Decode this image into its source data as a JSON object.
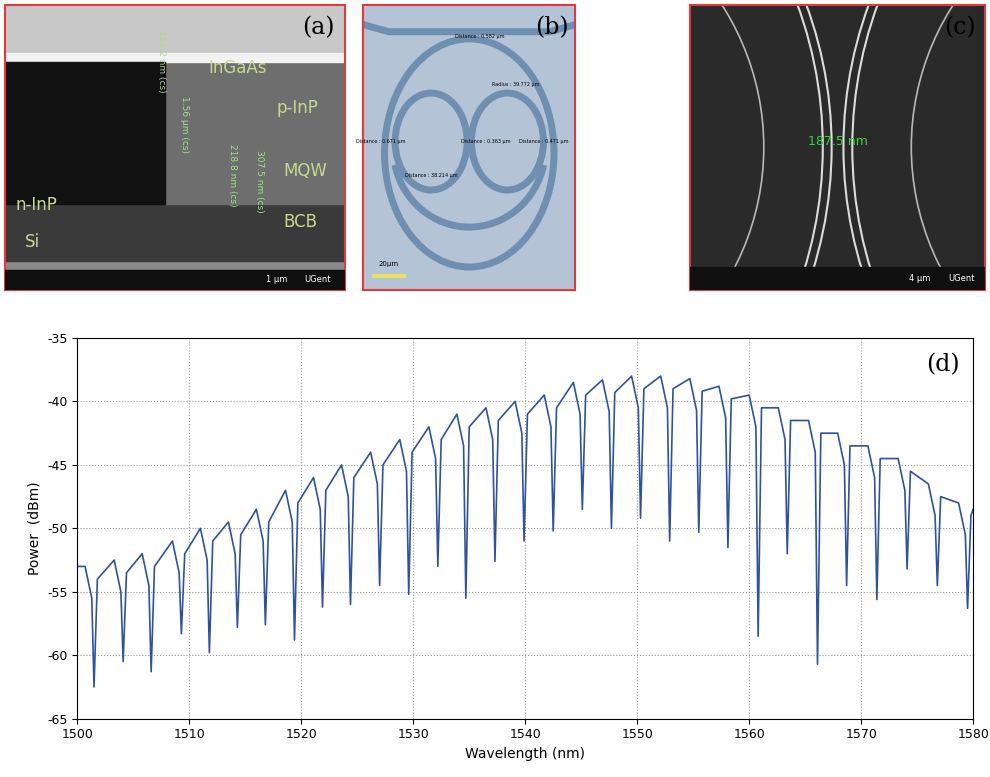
{
  "panels": [
    {
      "label": "(a)",
      "layers": [
        "InGaAs",
        "p-InP",
        "MQW",
        "BCB",
        "n-InP",
        "Si"
      ],
      "measurements": [
        "161.2 nm (cs)",
        "1.56 µm (cs)",
        "218.8 nm (cs)",
        "307.5 nm (cs)"
      ],
      "scale_bar": "1 µm",
      "footer": "UGent"
    },
    {
      "label": "(b)",
      "measurements": [
        "Distance : 0.582 µm",
        "Distance : 0.671 µm",
        "Distance : 38.214 µm",
        "Distance : 0.363 µm",
        "Distance : 0.471 µm",
        "Radius : 39.772 µm"
      ],
      "scale_bar": "20µm"
    },
    {
      "label": "(c)",
      "measurements": [
        "187.5 nm"
      ],
      "scale_bar": "4 µm",
      "footer": "UGent"
    }
  ],
  "chart_data": {
    "type": "line",
    "annotations": [
      "(d)"
    ],
    "x_label": "Wavelength (nm)",
    "y_label": "Power  (dBm)",
    "xlim": [
      1500,
      1580
    ],
    "ylim": [
      -65,
      -35
    ],
    "xticks": [
      1500,
      1510,
      1520,
      1530,
      1540,
      1550,
      1560,
      1570,
      1580
    ],
    "yticks": [
      -65,
      -60,
      -55,
      -50,
      -45,
      -40,
      -35
    ],
    "grid": true,
    "color": "#2f52a0",
    "x": [
      1500.0,
      1500.7,
      1501.3,
      1501.5,
      1501.8,
      1503.3,
      1503.9,
      1504.1,
      1504.4,
      1505.8,
      1506.4,
      1506.6,
      1506.9,
      1508.5,
      1509.1,
      1509.3,
      1509.6,
      1511.0,
      1511.6,
      1511.8,
      1512.1,
      1513.5,
      1514.1,
      1514.3,
      1514.6,
      1516.0,
      1516.6,
      1516.8,
      1517.1,
      1518.6,
      1519.2,
      1519.4,
      1519.7,
      1521.1,
      1521.7,
      1521.9,
      1522.2,
      1523.6,
      1524.2,
      1524.4,
      1524.7,
      1526.2,
      1526.8,
      1527.0,
      1527.3,
      1528.8,
      1529.4,
      1529.6,
      1529.9,
      1531.4,
      1532.0,
      1532.2,
      1532.5,
      1533.9,
      1534.5,
      1534.7,
      1535.0,
      1536.5,
      1537.1,
      1537.3,
      1537.6,
      1539.1,
      1539.7,
      1539.9,
      1540.2,
      1541.7,
      1542.3,
      1542.5,
      1542.8,
      1544.3,
      1544.9,
      1545.1,
      1545.4,
      1546.9,
      1547.5,
      1547.7,
      1548.0,
      1549.5,
      1550.1,
      1550.3,
      1550.6,
      1552.1,
      1552.7,
      1552.9,
      1553.2,
      1554.7,
      1555.3,
      1555.5,
      1555.8,
      1557.3,
      1557.9,
      1558.1,
      1558.4,
      1560.0,
      1560.6,
      1560.8,
      1561.1,
      1562.6,
      1563.2,
      1563.4,
      1563.7,
      1565.3,
      1565.9,
      1566.1,
      1566.4,
      1567.9,
      1568.5,
      1568.7,
      1569.0,
      1570.6,
      1571.2,
      1571.4,
      1571.7,
      1573.3,
      1573.9,
      1574.1,
      1574.4,
      1576.0,
      1576.6,
      1576.8,
      1577.1,
      1578.7,
      1579.3,
      1579.5,
      1579.8,
      1580.0
    ],
    "values": [
      -53.0,
      -53.0,
      -55.5,
      -62.5,
      -54.0,
      -52.5,
      -55.0,
      -60.5,
      -53.5,
      -52.0,
      -54.5,
      -61.3,
      -53.0,
      -51.0,
      -53.5,
      -58.3,
      -52.0,
      -50.0,
      -52.5,
      -59.8,
      -51.0,
      -49.5,
      -52.0,
      -57.8,
      -50.5,
      -48.5,
      -51.0,
      -57.6,
      -49.5,
      -47.0,
      -49.5,
      -58.8,
      -48.0,
      -46.0,
      -48.5,
      -56.2,
      -47.0,
      -45.0,
      -47.5,
      -56.0,
      -46.0,
      -44.0,
      -46.5,
      -54.5,
      -45.0,
      -43.0,
      -45.5,
      -55.2,
      -44.0,
      -42.0,
      -44.5,
      -53.0,
      -43.0,
      -41.0,
      -43.5,
      -55.5,
      -42.0,
      -40.5,
      -43.0,
      -52.6,
      -41.5,
      -40.0,
      -42.5,
      -51.0,
      -41.0,
      -39.5,
      -42.0,
      -50.2,
      -40.5,
      -38.5,
      -41.0,
      -48.5,
      -39.5,
      -38.3,
      -40.8,
      -50.0,
      -39.3,
      -38.0,
      -40.5,
      -49.2,
      -39.0,
      -38.0,
      -40.5,
      -51.0,
      -39.0,
      -38.2,
      -40.7,
      -50.3,
      -39.2,
      -38.8,
      -41.3,
      -51.5,
      -39.8,
      -39.5,
      -42.0,
      -58.5,
      -40.5,
      -40.5,
      -43.0,
      -52.0,
      -41.5,
      -41.5,
      -44.0,
      -60.7,
      -42.5,
      -42.5,
      -45.0,
      -54.5,
      -43.5,
      -43.5,
      -46.0,
      -55.6,
      -44.5,
      -44.5,
      -47.0,
      -53.2,
      -45.5,
      -46.5,
      -49.0,
      -54.5,
      -47.5,
      -48.0,
      -50.5,
      -56.3,
      -49.0,
      -48.5
    ]
  }
}
